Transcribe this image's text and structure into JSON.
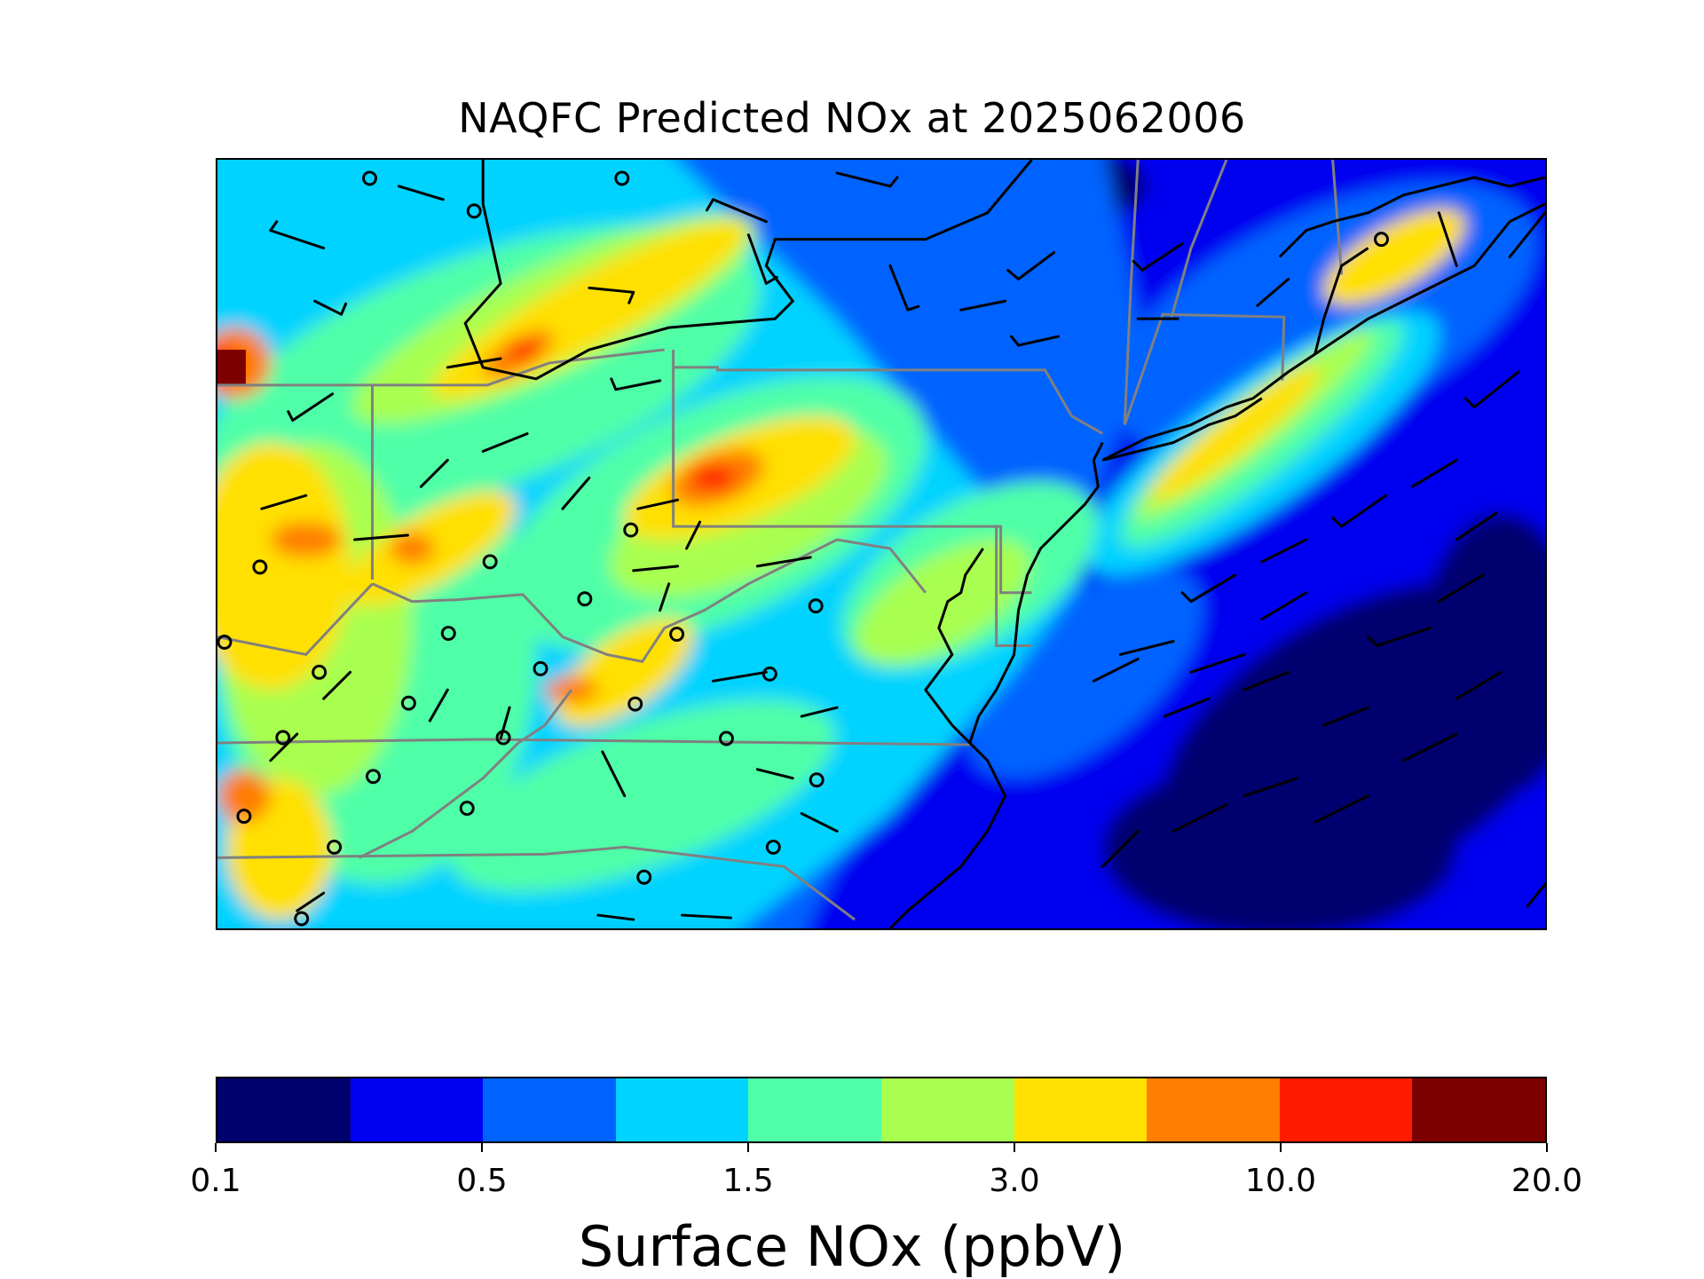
{
  "title": "NAQFC Predicted NOx at 2025062006",
  "colorbar": {
    "label": "Surface NOx (ppbV)",
    "colors": [
      "#00006e",
      "#0000f0",
      "#0063ff",
      "#00d3ff",
      "#50ffa8",
      "#a8ff4f",
      "#ffe000",
      "#ff7d00",
      "#ff1b00",
      "#7d0000"
    ],
    "tick_labels": [
      "0.1",
      "0.5",
      "1.5",
      "3.0",
      "10.0",
      "20.0"
    ],
    "tick_bins": [
      0,
      2,
      4,
      6,
      8,
      10
    ]
  },
  "map": {
    "field": "Surface NOx",
    "units": "ppbV",
    "region": "Mid-Atlantic / Northeastern United States",
    "background_level": "0.25-0.5 ppbV over ocean",
    "state_line_color": "#808080",
    "coastline_color": "#000000",
    "wind_barb_color": "#000000",
    "calm_marker": "circle"
  }
}
